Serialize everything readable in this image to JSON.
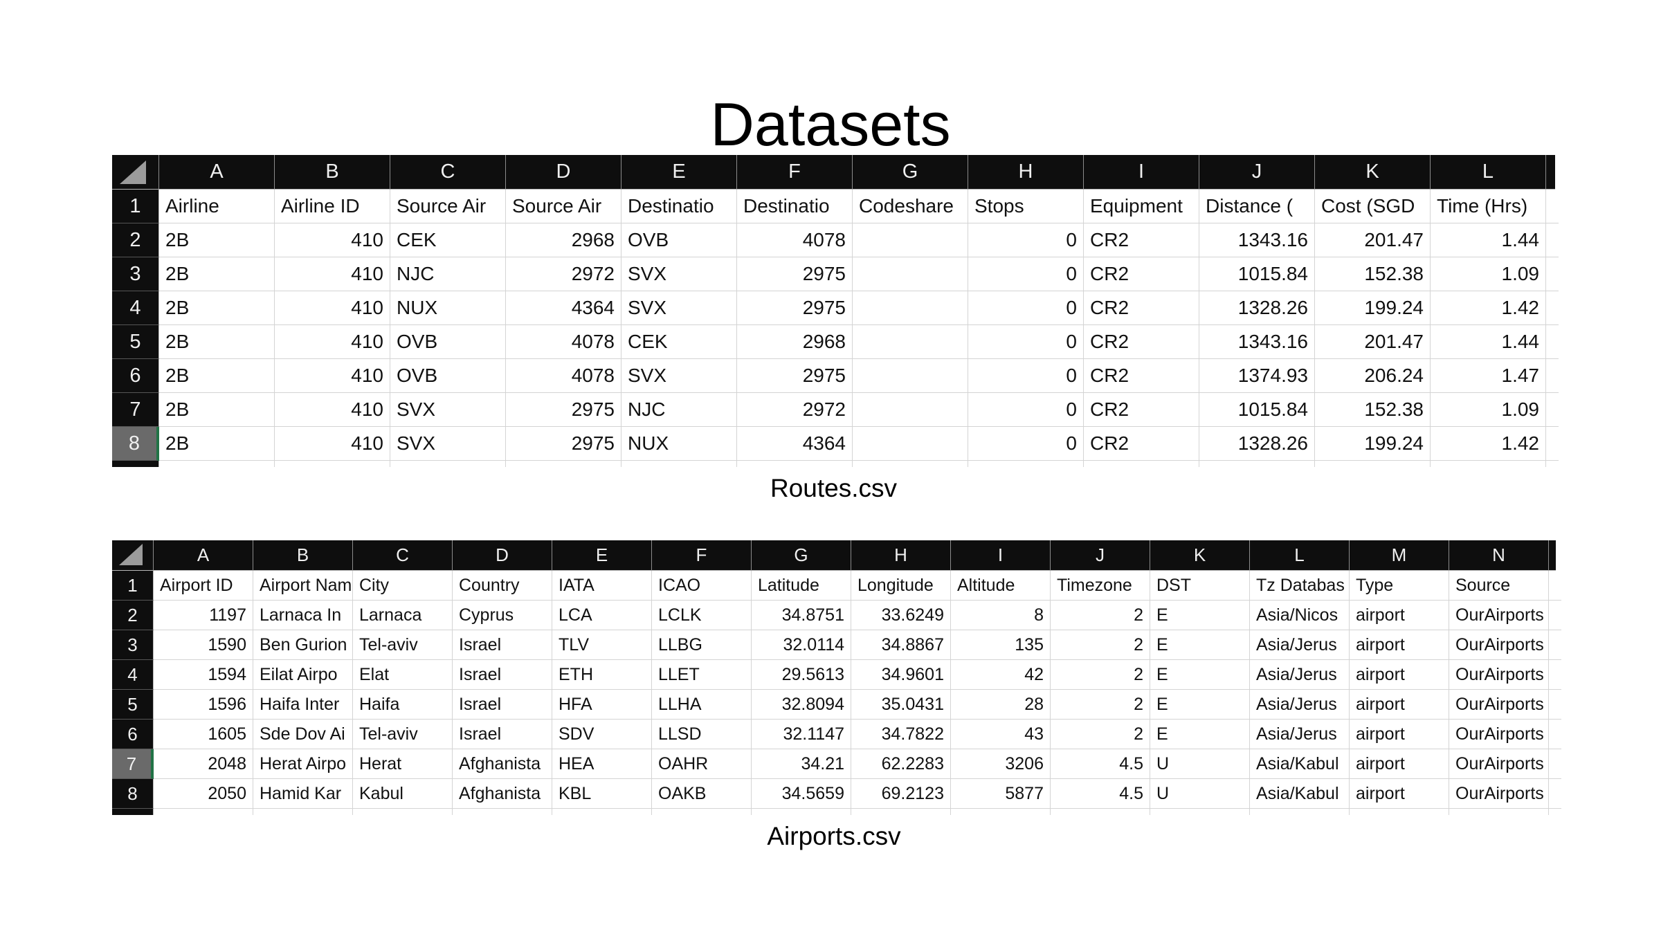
{
  "page": {
    "title": "Datasets"
  },
  "colors": {
    "header_bg": "#0e0e0e",
    "header_text": "#f0f0f0",
    "gridline": "#d4d4d4",
    "selected_row_header_bg": "#6a6a6a",
    "selection_green": "#217346",
    "cell_text": "#111111",
    "background": "#ffffff"
  },
  "tables": [
    {
      "name": "routes",
      "caption": "Routes.csv",
      "column_letters": [
        "A",
        "B",
        "C",
        "D",
        "E",
        "F",
        "G",
        "H",
        "I",
        "J",
        "K",
        "L"
      ],
      "headers": [
        "Airline",
        "Airline ID",
        "Source Air",
        "Source Air",
        "Destinatio",
        "Destinatio",
        "Codeshare",
        "Stops",
        "Equipment",
        "Distance (",
        "Cost (SGD",
        "Time (Hrs)"
      ],
      "align": [
        "left",
        "right",
        "left",
        "right",
        "left",
        "right",
        "left",
        "right",
        "left",
        "right",
        "right",
        "right"
      ],
      "selected_row_number": 8,
      "rows": [
        [
          "2B",
          "410",
          "CEK",
          "2968",
          "OVB",
          "4078",
          "",
          "0",
          "CR2",
          "1343.16",
          "201.47",
          "1.44"
        ],
        [
          "2B",
          "410",
          "NJC",
          "2972",
          "SVX",
          "2975",
          "",
          "0",
          "CR2",
          "1015.84",
          "152.38",
          "1.09"
        ],
        [
          "2B",
          "410",
          "NUX",
          "4364",
          "SVX",
          "2975",
          "",
          "0",
          "CR2",
          "1328.26",
          "199.24",
          "1.42"
        ],
        [
          "2B",
          "410",
          "OVB",
          "4078",
          "CEK",
          "2968",
          "",
          "0",
          "CR2",
          "1343.16",
          "201.47",
          "1.44"
        ],
        [
          "2B",
          "410",
          "OVB",
          "4078",
          "SVX",
          "2975",
          "",
          "0",
          "CR2",
          "1374.93",
          "206.24",
          "1.47"
        ],
        [
          "2B",
          "410",
          "SVX",
          "2975",
          "NJC",
          "2972",
          "",
          "0",
          "CR2",
          "1015.84",
          "152.38",
          "1.09"
        ],
        [
          "2B",
          "410",
          "SVX",
          "2975",
          "NUX",
          "4364",
          "",
          "0",
          "CR2",
          "1328.26",
          "199.24",
          "1.42"
        ]
      ]
    },
    {
      "name": "airports",
      "caption": "Airports.csv",
      "column_letters": [
        "A",
        "B",
        "C",
        "D",
        "E",
        "F",
        "G",
        "H",
        "I",
        "J",
        "K",
        "L",
        "M",
        "N"
      ],
      "headers": [
        "Airport ID",
        "Airport Nam",
        "City",
        "Country",
        "IATA",
        "ICAO",
        "Latitude",
        "Longitude",
        "Altitude",
        "Timezone",
        "DST",
        "Tz Databas",
        "Type",
        "Source"
      ],
      "align": [
        "right",
        "left",
        "left",
        "left",
        "left",
        "left",
        "right",
        "right",
        "right",
        "right",
        "left",
        "left",
        "left",
        "left"
      ],
      "selected_row_number": 7,
      "rows": [
        [
          "1197",
          "Larnaca In",
          "Larnaca",
          "Cyprus",
          "LCA",
          "LCLK",
          "34.8751",
          "33.6249",
          "8",
          "2",
          "E",
          "Asia/Nicos",
          "airport",
          "OurAirports"
        ],
        [
          "1590",
          "Ben Gurion",
          "Tel-aviv",
          "Israel",
          "TLV",
          "LLBG",
          "32.0114",
          "34.8867",
          "135",
          "2",
          "E",
          "Asia/Jerus",
          "airport",
          "OurAirports"
        ],
        [
          "1594",
          "Eilat Airpo",
          "Elat",
          "Israel",
          "ETH",
          "LLET",
          "29.5613",
          "34.9601",
          "42",
          "2",
          "E",
          "Asia/Jerus",
          "airport",
          "OurAirports"
        ],
        [
          "1596",
          "Haifa Inter",
          "Haifa",
          "Israel",
          "HFA",
          "LLHA",
          "32.8094",
          "35.0431",
          "28",
          "2",
          "E",
          "Asia/Jerus",
          "airport",
          "OurAirports"
        ],
        [
          "1605",
          "Sde Dov Ai",
          "Tel-aviv",
          "Israel",
          "SDV",
          "LLSD",
          "32.1147",
          "34.7822",
          "43",
          "2",
          "E",
          "Asia/Jerus",
          "airport",
          "OurAirports"
        ],
        [
          "2048",
          "Herat Airpo",
          "Herat",
          "Afghanista",
          "HEA",
          "OAHR",
          "34.21",
          "62.2283",
          "3206",
          "4.5",
          "U",
          "Asia/Kabul",
          "airport",
          "OurAirports"
        ],
        [
          "2050",
          "Hamid Kar",
          "Kabul",
          "Afghanista",
          "KBL",
          "OAKB",
          "34.5659",
          "69.2123",
          "5877",
          "4.5",
          "U",
          "Asia/Kabul",
          "airport",
          "OurAirports"
        ]
      ]
    }
  ]
}
